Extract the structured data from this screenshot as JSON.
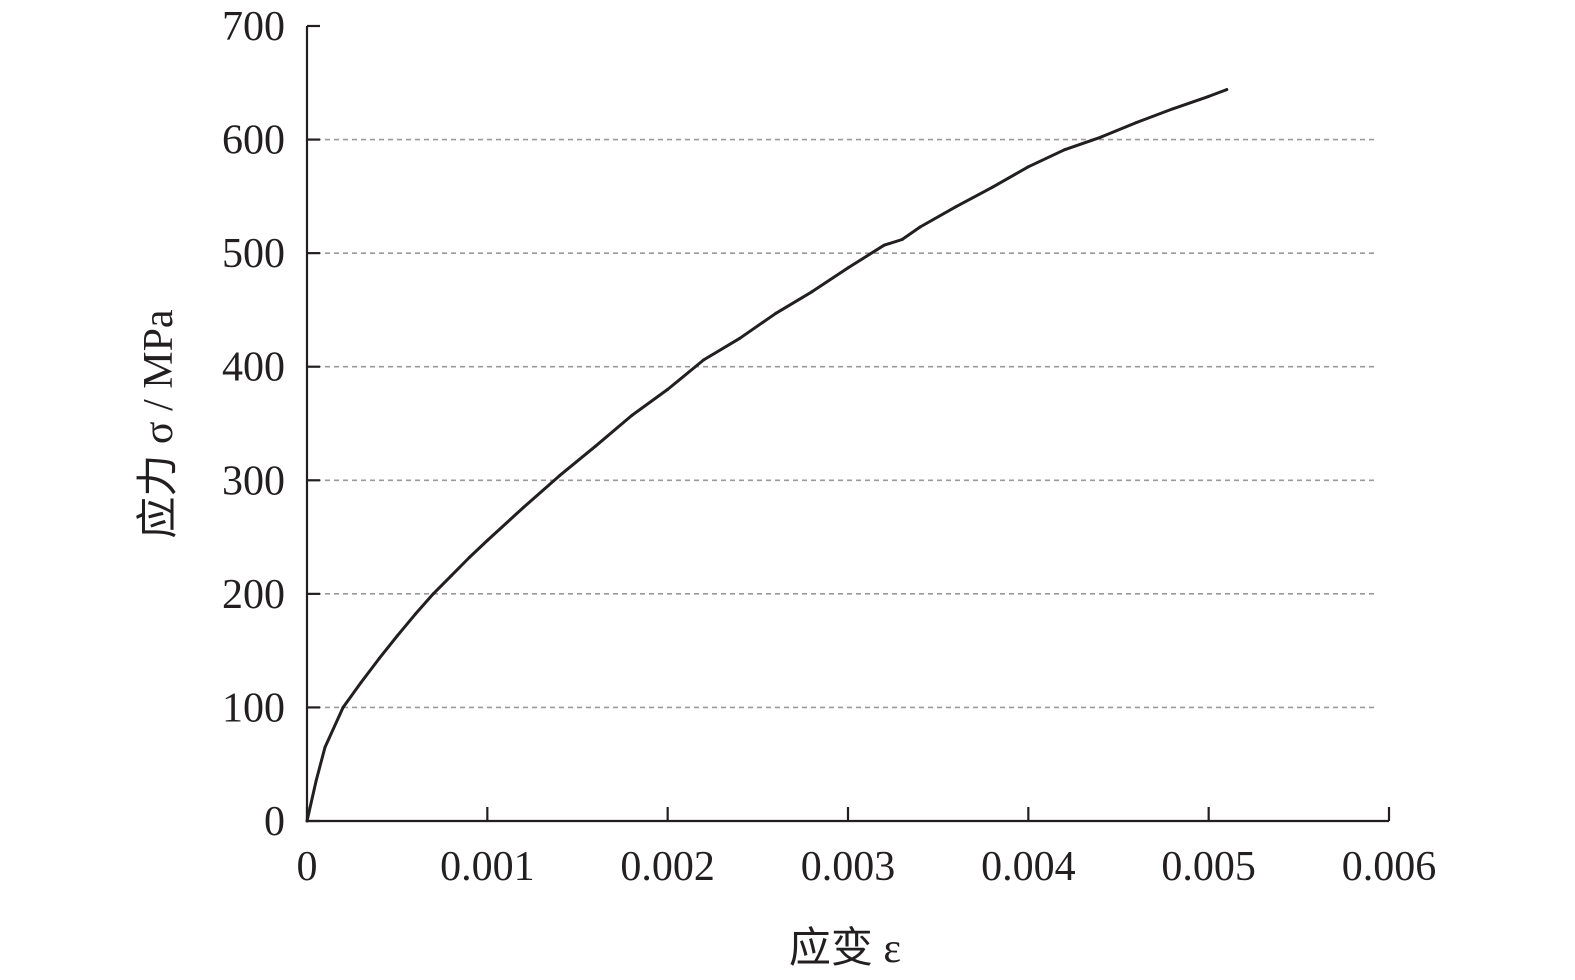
{
  "chart_data": {
    "type": "line",
    "title": "",
    "xlabel": "应变 ε",
    "ylabel": "应力 σ / MPa",
    "xlim": [
      0,
      0.006
    ],
    "ylim": [
      0,
      700
    ],
    "x_ticks": [
      0,
      0.001,
      0.002,
      0.003,
      0.004,
      0.005,
      0.006
    ],
    "x_tick_labels": [
      "0",
      "0.001",
      "0.002",
      "0.003",
      "0.004",
      "0.005",
      "0.006"
    ],
    "y_ticks": [
      0,
      100,
      200,
      300,
      400,
      500,
      600,
      700
    ],
    "y_tick_labels": [
      "0",
      "100",
      "200",
      "300",
      "400",
      "500",
      "600",
      "700"
    ],
    "grid": "horizontal dashed",
    "legend": "none",
    "series": [
      {
        "color": "#231f20",
        "x": [
          0,
          5e-05,
          0.0001,
          0.0002,
          0.0003,
          0.0004,
          0.0005,
          0.0006,
          0.0007,
          0.0008,
          0.0009,
          0.001,
          0.0012,
          0.0014,
          0.0016,
          0.0018,
          0.002,
          0.0022,
          0.0024,
          0.0026,
          0.0028,
          0.003,
          0.0032,
          0.0033,
          0.0034,
          0.0036,
          0.0038,
          0.004,
          0.0042,
          0.0044,
          0.0046,
          0.0048,
          0.005,
          0.0051
        ],
        "y": [
          0,
          35,
          65,
          100,
          122,
          143,
          163,
          182,
          200,
          216,
          232,
          247,
          276,
          304,
          330,
          357,
          380,
          406,
          425,
          447,
          466,
          487,
          507,
          512,
          523,
          541,
          558,
          576,
          591,
          602,
          615,
          627,
          638,
          644
        ]
      }
    ]
  }
}
